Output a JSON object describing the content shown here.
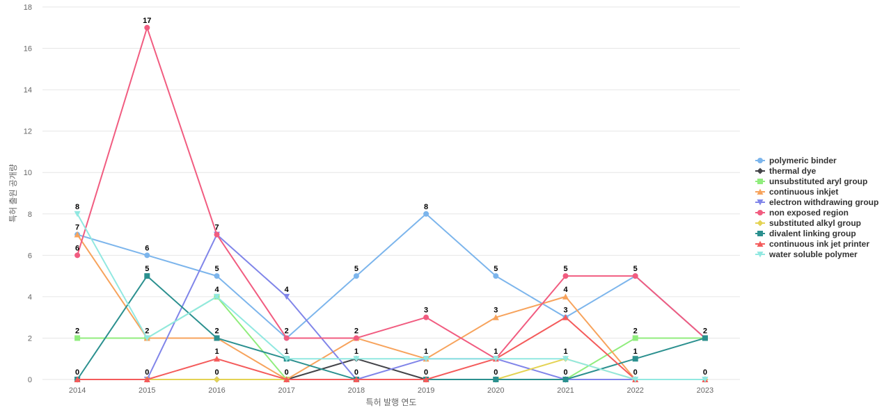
{
  "chart_data": {
    "type": "line",
    "title": "",
    "xlabel": "특허 발행 연도",
    "ylabel": "특허 출원 공개량",
    "ylim": [
      0,
      18
    ],
    "y_ticks": [
      0,
      2,
      4,
      6,
      8,
      10,
      12,
      14,
      16,
      18
    ],
    "grid": true,
    "legend_position": "right",
    "x": [
      "2014",
      "2015",
      "2016",
      "2017",
      "2018",
      "2019",
      "2020",
      "2021",
      "2022",
      "2023"
    ],
    "series": [
      {
        "name": "polymeric binder",
        "color": "#7cb5ec",
        "marker": "circle",
        "values": [
          7,
          6,
          5,
          2,
          5,
          8,
          5,
          3,
          5,
          2
        ]
      },
      {
        "name": "thermal dye",
        "color": "#434348",
        "marker": "diamond",
        "values": [
          0,
          0,
          0,
          0,
          1,
          0,
          0,
          0,
          0,
          0
        ]
      },
      {
        "name": "unsubstituted aryl group",
        "color": "#90ed7d",
        "marker": "square",
        "values": [
          2,
          2,
          4,
          0,
          0,
          0,
          0,
          0,
          2,
          2
        ]
      },
      {
        "name": "continuous inkjet",
        "color": "#f7a35c",
        "marker": "triangle",
        "values": [
          7,
          2,
          2,
          0,
          2,
          1,
          3,
          4,
          0,
          0
        ]
      },
      {
        "name": "electron withdrawing group",
        "color": "#8085e9",
        "marker": "triangle-down",
        "values": [
          0,
          0,
          7,
          4,
          0,
          1,
          1,
          0,
          0,
          0
        ]
      },
      {
        "name": "non exposed region",
        "color": "#f15c80",
        "marker": "circle",
        "values": [
          6,
          17,
          7,
          2,
          2,
          3,
          1,
          5,
          5,
          2
        ]
      },
      {
        "name": "substituted alkyl group",
        "color": "#e4d354",
        "marker": "diamond",
        "values": [
          0,
          0,
          0,
          0,
          0,
          0,
          0,
          1,
          0,
          0
        ]
      },
      {
        "name": "divalent linking group",
        "color": "#2b908f",
        "marker": "square",
        "values": [
          0,
          5,
          2,
          1,
          0,
          0,
          0,
          0,
          1,
          2
        ]
      },
      {
        "name": "continuous ink jet printer",
        "color": "#f45b5b",
        "marker": "triangle",
        "values": [
          0,
          0,
          1,
          0,
          0,
          0,
          1,
          3,
          0,
          0
        ]
      },
      {
        "name": "water soluble polymer",
        "color": "#91e8e1",
        "marker": "triangle-down",
        "values": [
          8,
          2,
          4,
          1,
          1,
          1,
          1,
          1,
          0,
          0
        ]
      }
    ],
    "data_labels": [
      {
        "x": "2014",
        "text": "8",
        "value": 8
      },
      {
        "x": "2014",
        "text": "7",
        "value": 7
      },
      {
        "x": "2014",
        "text": "6",
        "value": 6
      },
      {
        "x": "2014",
        "text": "2",
        "value": 2
      },
      {
        "x": "2014",
        "text": "0",
        "value": 0
      },
      {
        "x": "2015",
        "text": "17",
        "value": 17
      },
      {
        "x": "2015",
        "text": "6",
        "value": 6
      },
      {
        "x": "2015",
        "text": "5",
        "value": 5
      },
      {
        "x": "2015",
        "text": "2",
        "value": 2
      },
      {
        "x": "2015",
        "text": "0",
        "value": 0
      },
      {
        "x": "2016",
        "text": "7",
        "value": 7
      },
      {
        "x": "2016",
        "text": "5",
        "value": 5
      },
      {
        "x": "2016",
        "text": "4",
        "value": 4
      },
      {
        "x": "2016",
        "text": "2",
        "value": 2
      },
      {
        "x": "2016",
        "text": "1",
        "value": 1
      },
      {
        "x": "2016",
        "text": "0",
        "value": 0
      },
      {
        "x": "2017",
        "text": "4",
        "value": 4
      },
      {
        "x": "2017",
        "text": "2",
        "value": 2
      },
      {
        "x": "2017",
        "text": "1",
        "value": 1
      },
      {
        "x": "2017",
        "text": "0",
        "value": 0
      },
      {
        "x": "2018",
        "text": "5",
        "value": 5
      },
      {
        "x": "2018",
        "text": "2",
        "value": 2
      },
      {
        "x": "2018",
        "text": "1",
        "value": 1
      },
      {
        "x": "2018",
        "text": "0",
        "value": 0
      },
      {
        "x": "2019",
        "text": "8",
        "value": 8
      },
      {
        "x": "2019",
        "text": "3",
        "value": 3
      },
      {
        "x": "2019",
        "text": "1",
        "value": 1
      },
      {
        "x": "2019",
        "text": "0",
        "value": 0
      },
      {
        "x": "2020",
        "text": "5",
        "value": 5
      },
      {
        "x": "2020",
        "text": "3",
        "value": 3
      },
      {
        "x": "2020",
        "text": "1",
        "value": 1
      },
      {
        "x": "2020",
        "text": "0",
        "value": 0
      },
      {
        "x": "2021",
        "text": "5",
        "value": 5
      },
      {
        "x": "2021",
        "text": "4",
        "value": 4
      },
      {
        "x": "2021",
        "text": "3",
        "value": 3
      },
      {
        "x": "2021",
        "text": "1",
        "value": 1
      },
      {
        "x": "2021",
        "text": "0",
        "value": 0
      },
      {
        "x": "2022",
        "text": "5",
        "value": 5
      },
      {
        "x": "2022",
        "text": "2",
        "value": 2
      },
      {
        "x": "2022",
        "text": "1",
        "value": 1
      },
      {
        "x": "2022",
        "text": "0",
        "value": 0
      },
      {
        "x": "2023",
        "text": "2",
        "value": 2
      },
      {
        "x": "2023",
        "text": "0",
        "value": 0
      }
    ]
  }
}
